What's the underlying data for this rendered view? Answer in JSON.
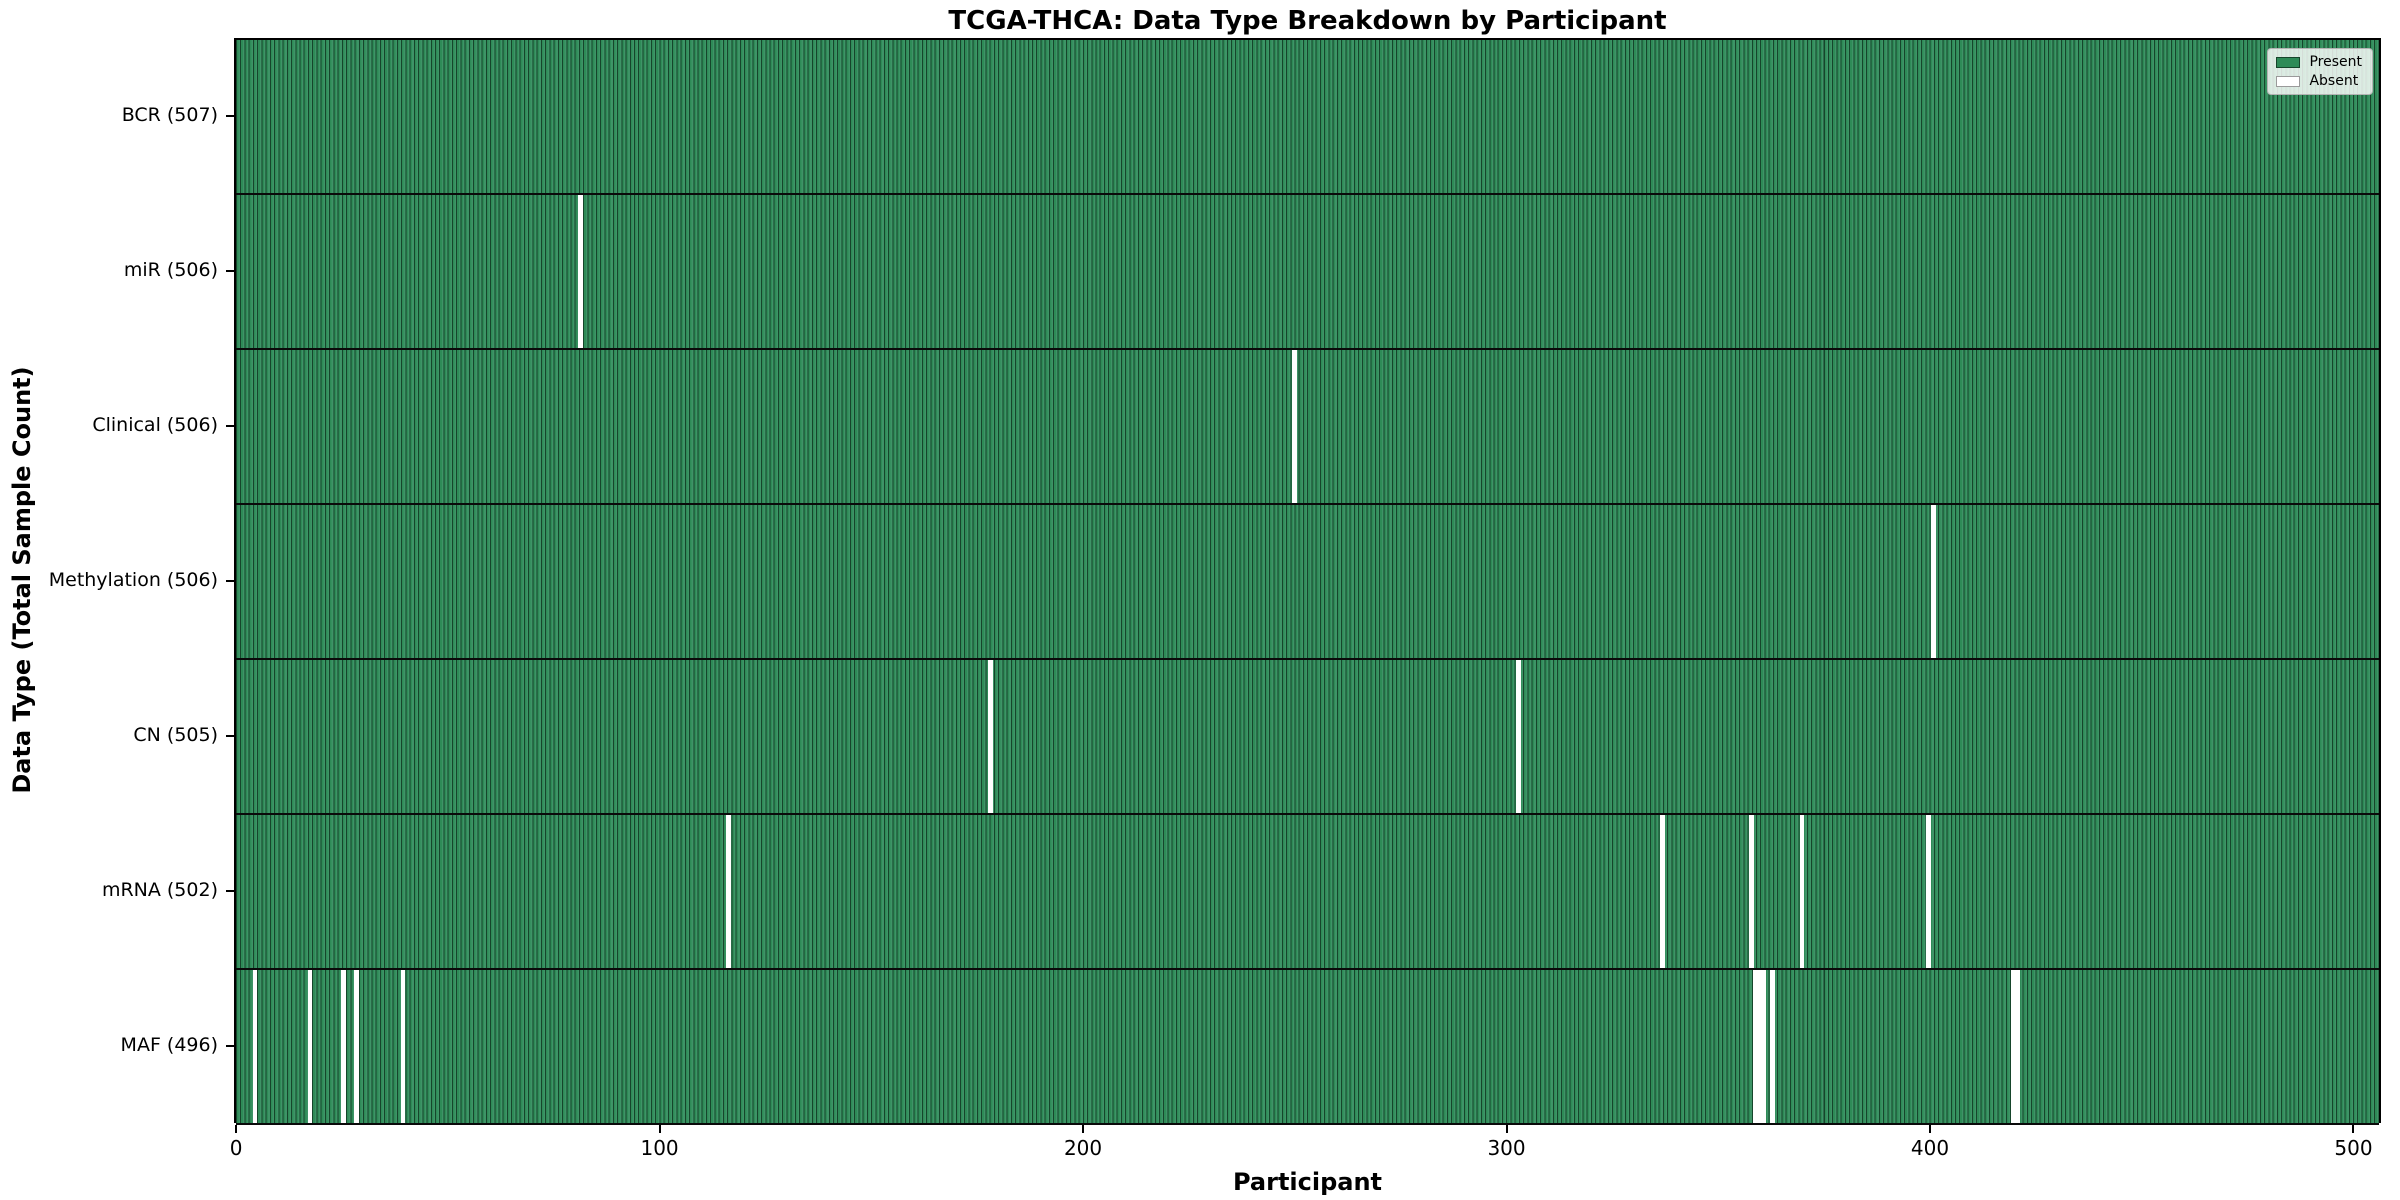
{
  "title": "TCGA-THCA: Data Type Breakdown by Participant",
  "axes": {
    "xlabel": "Participant",
    "ylabel": "Data Type (Total Sample Count)"
  },
  "legend": {
    "present_label": "Present",
    "absent_label": "Absent",
    "position": "upper right"
  },
  "colors": {
    "present_fill": "#2e8b57",
    "present_edge": "#16452b",
    "absent_fill": "#ffffff",
    "row_separator": "#000000",
    "background": "#ffffff"
  },
  "chart_data": {
    "type": "heatmap",
    "title": "TCGA-THCA: Data Type Breakdown by Participant",
    "xlabel": "Participant",
    "ylabel": "Data Type (Total Sample Count)",
    "x_ticks": [
      0,
      100,
      200,
      300,
      400,
      500
    ],
    "xlim": [
      -0.5,
      506.5
    ],
    "total_participants": 507,
    "legend_entries": [
      "Present",
      "Absent"
    ],
    "legend_position": "upper right",
    "grid": false,
    "rows": [
      {
        "label": "BCR (507)",
        "data_type": "BCR",
        "total": 507,
        "absent_participants": []
      },
      {
        "label": "miR (506)",
        "data_type": "miR",
        "total": 506,
        "absent_participants": [
          81
        ]
      },
      {
        "label": "Clinical (506)",
        "data_type": "Clinical",
        "total": 506,
        "absent_participants": [
          250
        ]
      },
      {
        "label": "Methylation (506)",
        "data_type": "Methylation",
        "total": 506,
        "absent_participants": [
          401
        ]
      },
      {
        "label": "CN (505)",
        "data_type": "CN",
        "total": 505,
        "absent_participants": [
          178,
          303
        ]
      },
      {
        "label": "mRNA (502)",
        "data_type": "mRNA",
        "total": 502,
        "absent_participants": [
          116,
          337,
          358,
          370,
          400
        ]
      },
      {
        "label": "MAF (496)",
        "data_type": "MAF",
        "total": 496,
        "absent_participants": [
          4,
          17,
          25,
          28,
          39,
          359,
          360,
          361,
          363,
          420,
          421
        ]
      }
    ]
  }
}
